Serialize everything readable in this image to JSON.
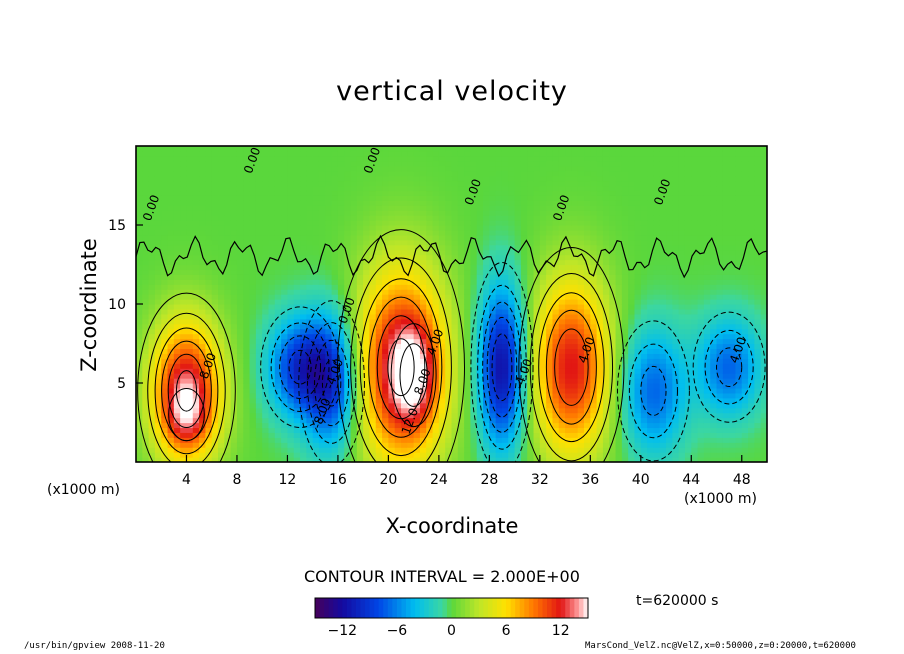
{
  "chart_data": {
    "type": "heatmap",
    "title": "vertical velocity",
    "xlabel": "X-coordinate",
    "ylabel": "Z-coordinate",
    "x_unit": "(x1000 m)",
    "xlim": [
      0,
      50
    ],
    "ylim": [
      0,
      20
    ],
    "x_ticks": [
      4,
      8,
      12,
      16,
      20,
      24,
      28,
      32,
      36,
      40,
      44,
      48
    ],
    "y_ticks": [
      5,
      10,
      15
    ],
    "contour_interval_text": "CONTOUR INTERVAL = 2.000E+00",
    "time_text": "t=620000 s",
    "colorbar": {
      "min": -15,
      "max": 15,
      "ticks": [
        -12,
        -6,
        0,
        6,
        12
      ]
    },
    "contour_labels": [
      "0.00",
      "0.00",
      "0.00",
      "0.00",
      "0.00",
      "0.00",
      "0.00",
      "4.00",
      "4.00",
      "4.00",
      "-4.00",
      "-8.00",
      "-4.00",
      "8.00",
      "8.00",
      "12.0"
    ],
    "cells": [
      {
        "x": 4,
        "z": 4.5,
        "value": 13,
        "sx": 2.0,
        "sz": 3.2
      },
      {
        "x": 4,
        "z": 3,
        "value": 4,
        "sx": 1.2,
        "sz": 1.4
      },
      {
        "x": 13,
        "z": 6,
        "value": -9,
        "sx": 1.8,
        "sz": 2.2
      },
      {
        "x": 15.5,
        "z": 5,
        "value": -9,
        "sx": 1.5,
        "sz": 3.0
      },
      {
        "x": 21,
        "z": 6,
        "value": 13,
        "sx": 2.6,
        "sz": 4.5
      },
      {
        "x": 22,
        "z": 5.5,
        "value": 6,
        "sx": 1.2,
        "sz": 2.2
      },
      {
        "x": 29,
        "z": 6,
        "value": -12,
        "sx": 1.3,
        "sz": 3.5
      },
      {
        "x": 34.5,
        "z": 6,
        "value": 12,
        "sx": 2.2,
        "sz": 4.0
      },
      {
        "x": 41,
        "z": 4.5,
        "value": -7,
        "sx": 1.8,
        "sz": 2.8
      },
      {
        "x": 47,
        "z": 6,
        "value": -7,
        "sx": 1.8,
        "sz": 2.2
      }
    ]
  },
  "footer": {
    "left": "/usr/bin/gpview  2008-11-20",
    "right": "MarsCond_VelZ.nc@VelZ,x=0:50000,z=0:20000,t=620000"
  }
}
